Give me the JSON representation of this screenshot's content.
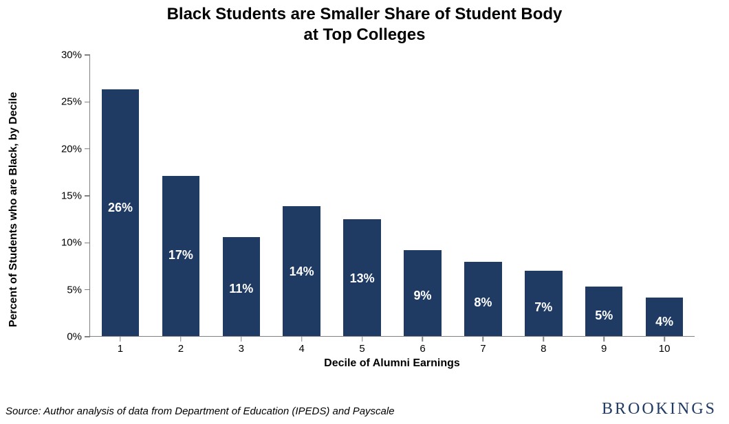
{
  "chart": {
    "type": "bar",
    "title_line1": "Black Students are Smaller Share of Student Body",
    "title_line2": "at Top Colleges",
    "title_fontsize": 24,
    "title_color": "#000000",
    "xlabel": "Decile of Alumni Earnings",
    "ylabel": "Percent of Students who are Black, by Decile",
    "axis_label_fontsize": 16,
    "categories": [
      "1",
      "2",
      "3",
      "4",
      "5",
      "6",
      "7",
      "8",
      "9",
      "10"
    ],
    "values": [
      26.3,
      17.1,
      10.6,
      13.9,
      12.5,
      9.2,
      7.9,
      7.0,
      5.3,
      4.1
    ],
    "value_labels": [
      "26%",
      "17%",
      "11%",
      "14%",
      "13%",
      "9%",
      "8%",
      "7%",
      "5%",
      "4%"
    ],
    "bar_color": "#1f3a63",
    "bar_label_color": "#ffffff",
    "bar_label_fontsize": 18,
    "bar_width_pct": 62,
    "ylim": [
      0,
      30
    ],
    "ytick_step": 5,
    "ytick_labels": [
      "0%",
      "5%",
      "10%",
      "15%",
      "20%",
      "25%",
      "30%"
    ],
    "tick_fontsize": 15,
    "axis_color": "#808080",
    "background_color": "#ffffff"
  },
  "footer": {
    "source": "Source: Author analysis of data from Department of Education (IPEDS) and Payscale",
    "source_fontsize": 15,
    "logo_text": "BROOKINGS",
    "logo_fontsize": 24,
    "logo_color": "#1f3a63"
  }
}
